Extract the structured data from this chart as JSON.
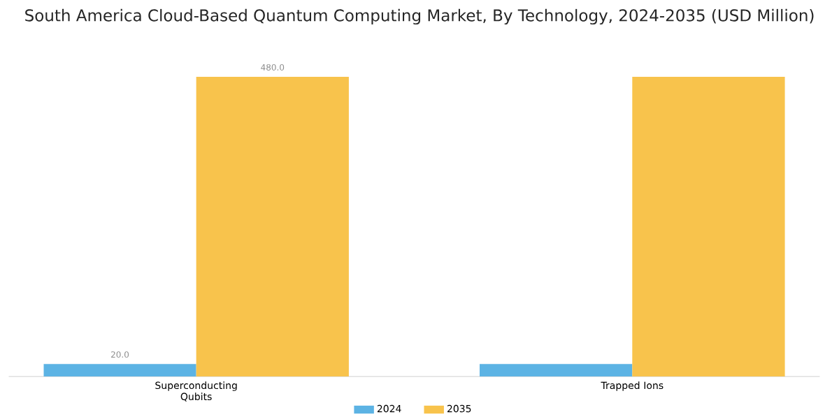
{
  "chart_data": {
    "type": "bar",
    "title": "South America Cloud-Based Quantum Computing Market, By Technology, 2024-2035 (USD Million)",
    "categories": [
      "Superconducting Qubits",
      "Trapped Ions"
    ],
    "series": [
      {
        "name": "2024",
        "color": "#5cb3e4",
        "values": [
          20,
          20
        ],
        "value_labels": [
          "20.0",
          null
        ]
      },
      {
        "name": "2035",
        "color": "#f8c34c",
        "values": [
          480,
          480
        ],
        "value_labels": [
          "480.0",
          null
        ]
      }
    ],
    "legend": "bottom",
    "grid": false
  }
}
